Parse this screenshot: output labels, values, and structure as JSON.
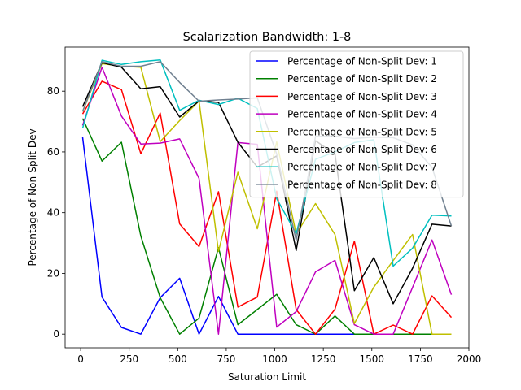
{
  "chart_data": {
    "type": "line",
    "title": "Scalarization Bandwidth: 1-8",
    "xlabel": "Saturation Limit",
    "ylabel": "Percentage of Non-Split Dev",
    "xlim": [
      -80,
      2000
    ],
    "ylim": [
      -4.5,
      94.5
    ],
    "xticks": [
      0,
      250,
      500,
      750,
      1000,
      1250,
      1500,
      1750,
      2000
    ],
    "yticks": [
      0,
      20,
      40,
      60,
      80
    ],
    "grid": false,
    "legend": "top-right",
    "x": [
      10,
      110,
      210,
      310,
      410,
      510,
      610,
      710,
      810,
      910,
      1010,
      1110,
      1210,
      1310,
      1410,
      1510,
      1610,
      1710,
      1810,
      1910
    ],
    "series": [
      {
        "name": "Percentage of Non-Split Dev: 1",
        "color": "#0000ff",
        "values": [
          64.8,
          12.2,
          2.2,
          0,
          12,
          18.4,
          0,
          12.4,
          0,
          0,
          0,
          0,
          0,
          0,
          0,
          0,
          0,
          0,
          0,
          0
        ]
      },
      {
        "name": "Percentage of Non-Split Dev: 2",
        "color": "#008000",
        "values": [
          71,
          57,
          63.2,
          32.3,
          12,
          0,
          5.3,
          28.5,
          3.1,
          8.1,
          13.1,
          3.1,
          0,
          6,
          0,
          0,
          0,
          0,
          0,
          0
        ]
      },
      {
        "name": "Percentage of Non-Split Dev: 3",
        "color": "#ff0000",
        "values": [
          72.5,
          83.3,
          80.5,
          59.4,
          72.8,
          36.3,
          28.8,
          46.9,
          8.9,
          12.2,
          47.1,
          8.1,
          0,
          8.2,
          30.6,
          0,
          3,
          0,
          12.6,
          5.5
        ]
      },
      {
        "name": "Percentage of Non-Split Dev: 4",
        "color": "#bf00bf",
        "values": [
          68.7,
          87.9,
          71.8,
          62.6,
          62.9,
          64.3,
          51.3,
          0,
          63.1,
          62.5,
          2.3,
          7.4,
          20.5,
          24.3,
          3.1,
          0,
          0,
          15.4,
          31,
          13
        ]
      },
      {
        "name": "Percentage of Non-Split Dev: 5",
        "color": "#bfbf00",
        "values": [
          73.3,
          89.1,
          88.2,
          87.9,
          63.4,
          70.3,
          76.8,
          27.2,
          53.3,
          34.7,
          63.3,
          33,
          43,
          32.8,
          3.5,
          15.5,
          24.2,
          32.8,
          0,
          0
        ]
      },
      {
        "name": "Percentage of Non-Split Dev: 6",
        "color": "#000000",
        "values": [
          74.9,
          89.4,
          87.9,
          80.8,
          81.5,
          71.5,
          76.8,
          76.3,
          63.2,
          55,
          58.7,
          27.5,
          63.7,
          59.3,
          14.3,
          25.2,
          10,
          21.7,
          36.2,
          35.6
        ]
      },
      {
        "name": "Percentage of Non-Split Dev: 7",
        "color": "#00bfbf",
        "values": [
          67.8,
          90.2,
          88.8,
          89.7,
          90.3,
          73.7,
          77,
          75.6,
          77.7,
          74.3,
          44.6,
          33.1,
          57.6,
          60,
          63.1,
          64,
          22.4,
          28.3,
          39.2,
          38.9
        ]
      },
      {
        "name": "Percentage of Non-Split Dev: 8",
        "color": "#708090",
        "values": [
          73.3,
          89.7,
          88.2,
          88.2,
          89.7,
          82.9,
          76.7,
          77.1,
          77.4,
          77.8,
          59.3,
          30.9,
          65.1,
          65.2,
          64.4,
          64.9,
          64.7,
          62.3,
          54.9,
          35.6
        ]
      }
    ]
  }
}
